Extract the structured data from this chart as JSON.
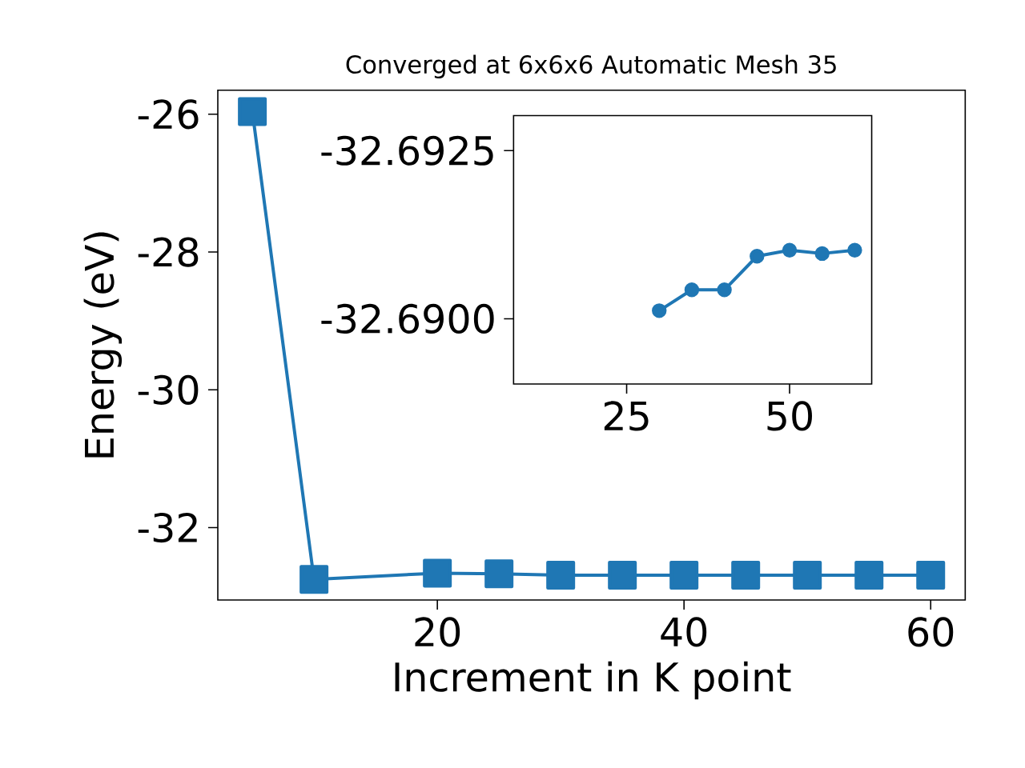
{
  "chart_data": [
    {
      "type": "line",
      "title": "Converged at 6x6x6 Automatic Mesh 35",
      "xlabel": "Increment in K point",
      "ylabel": "Energy (eV)",
      "color": "#1f77b4",
      "marker": "square",
      "x": [
        5,
        10,
        20,
        25,
        30,
        35,
        40,
        45,
        50,
        55,
        60
      ],
      "values": [
        -25.96,
        -32.75,
        -32.66,
        -32.67,
        -32.69,
        -32.69,
        -32.69,
        -32.69,
        -32.69,
        -32.69,
        -32.69
      ],
      "xlim": [
        2.2,
        62.8
      ],
      "ylim": [
        -33.05,
        -25.65
      ],
      "xticks": [
        20,
        40,
        60
      ],
      "yticks": [
        -32,
        -30,
        -28,
        -26
      ]
    },
    {
      "type": "line",
      "color": "#1f77b4",
      "marker": "circle",
      "x": [
        30,
        35,
        40,
        45,
        50,
        55,
        60
      ],
      "values": [
        -32.69012,
        -32.69043,
        -32.69043,
        -32.69093,
        -32.69102,
        -32.69097,
        -32.69102
      ],
      "xlim": [
        7.65,
        62.6
      ],
      "ylim": [
        -32.68903,
        -32.69302
      ],
      "xticks": [
        25,
        50
      ],
      "yticks": [
        {
          "value": -32.69,
          "label": "-32.6900"
        },
        -32.6925
      ]
    }
  ]
}
